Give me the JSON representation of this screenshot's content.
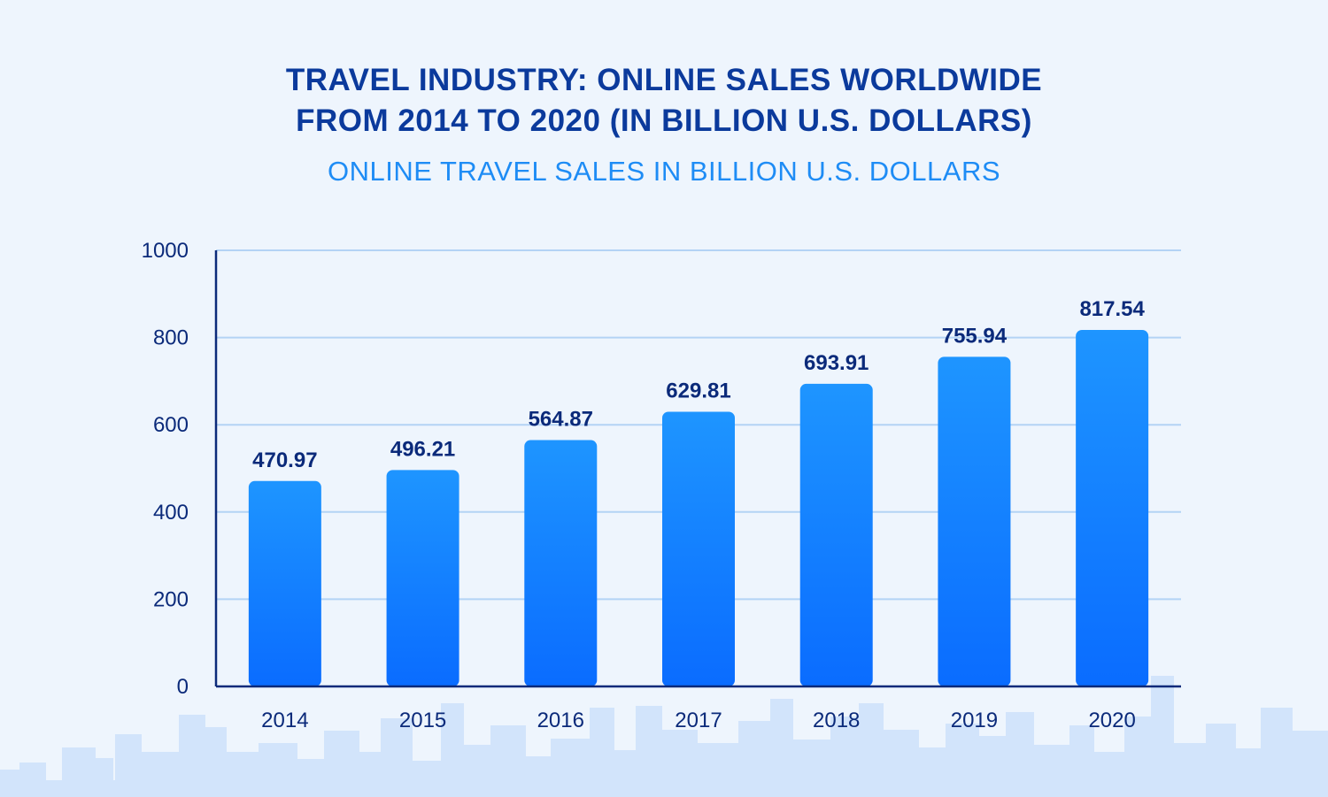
{
  "title_line1": "TRAVEL INDUSTRY: ONLINE SALES WORLDWIDE",
  "title_line2": "FROM 2014 TO 2020 (IN BILLION U.S. DOLLARS)",
  "subtitle": "ONLINE TRAVEL SALES IN BILLION U.S. DOLLARS",
  "colors": {
    "title": "#0b3a9c",
    "subtitle": "#1e8cf5",
    "bar_top": "#1e95ff",
    "bar_bottom": "#0a6cff",
    "axis": "#0b2a7a",
    "grid": "#b3d3f5",
    "skyline": "#d2e4fb",
    "label": "#0b2a7a"
  },
  "chart_data": {
    "type": "bar",
    "title": "TRAVEL INDUSTRY: ONLINE SALES WORLDWIDE FROM 2014 TO 2020 (IN BILLION U.S. DOLLARS)",
    "subtitle": "ONLINE TRAVEL SALES IN BILLION U.S. DOLLARS",
    "categories": [
      "2014",
      "2015",
      "2016",
      "2017",
      "2018",
      "2019",
      "2020"
    ],
    "values": [
      470.97,
      496.21,
      564.87,
      629.81,
      693.91,
      755.94,
      817.54
    ],
    "value_labels": [
      "470.97",
      "496.21",
      "564.87",
      "629.81",
      "693.91",
      "755.94",
      "817.54"
    ],
    "xlabel": "",
    "ylabel": "",
    "ylim": [
      0,
      1000
    ],
    "yticks": [
      0,
      200,
      400,
      600,
      800,
      1000
    ],
    "ytick_labels": [
      "0",
      "200",
      "400",
      "600",
      "800",
      "1000"
    ],
    "grid": true,
    "legend": "none"
  }
}
